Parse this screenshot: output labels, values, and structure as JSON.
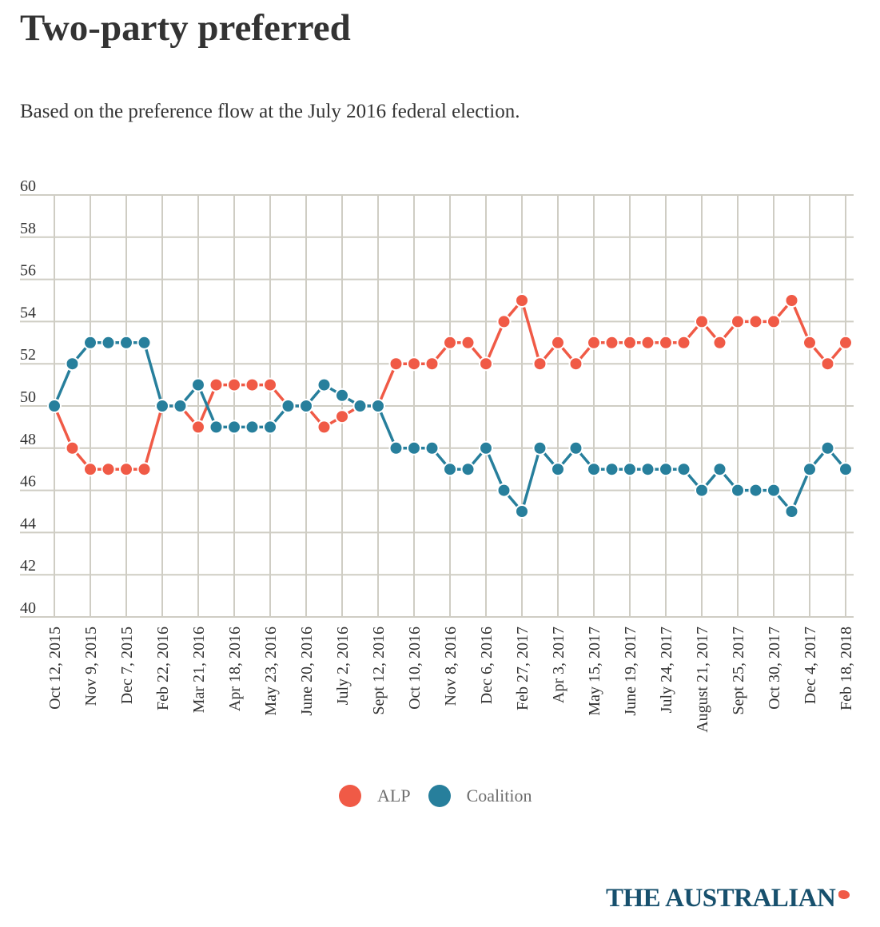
{
  "header": {
    "title": "Two-party preferred",
    "subtitle": "Based on the preference flow at the July 2016 federal election."
  },
  "legend": [
    {
      "label": "ALP",
      "color": "#f05a46"
    },
    {
      "label": "Coalition",
      "color": "#277f9c"
    }
  ],
  "logo": {
    "text": "THE AUSTRALIAN",
    "mark_color": "#f05a46"
  },
  "chart_data": {
    "type": "line",
    "title": "Two-party preferred",
    "subtitle": "Based on the preference flow at the July 2016 federal election.",
    "xlabel": "",
    "ylabel": "",
    "ylim": [
      40,
      60
    ],
    "yticks": [
      40,
      42,
      44,
      46,
      48,
      50,
      52,
      54,
      56,
      58,
      60
    ],
    "grid": true,
    "legend_position": "bottom-center",
    "x_tick_labels": [
      "Oct 12, 2015",
      "Nov 9, 2015",
      "Dec 7, 2015",
      "Feb 22, 2016",
      "Mar 21, 2016",
      "Apr 18, 2016",
      "May 23, 2016",
      "June 20, 2016",
      "July 2, 2016",
      "Sept 12, 2016",
      "Oct 10, 2016",
      "Nov 8, 2016",
      "Dec 6, 2016",
      "Feb 27, 2017",
      "Apr 3, 2017",
      "May 15, 2017",
      "June 19, 2017",
      "July 24, 2017",
      "August 21, 2017",
      "Sept 25, 2017",
      "Oct 30, 2017",
      "Dec 4, 2017",
      "Feb 18, 2018"
    ],
    "x_tick_every_n_points": 2,
    "n_points": 45,
    "series": [
      {
        "name": "ALP",
        "color": "#f05a46",
        "values": [
          50,
          48,
          47,
          47,
          47,
          47,
          50,
          50,
          49,
          51,
          51,
          51,
          51,
          50,
          50,
          49,
          49.5,
          50,
          50,
          52,
          52,
          52,
          53,
          53,
          52,
          54,
          55,
          52,
          53,
          52,
          53,
          53,
          53,
          53,
          53,
          53,
          54,
          53,
          54,
          54,
          54,
          55,
          53,
          52,
          53
        ]
      },
      {
        "name": "Coalition",
        "color": "#277f9c",
        "values": [
          50,
          52,
          53,
          53,
          53,
          53,
          50,
          50,
          51,
          49,
          49,
          49,
          49,
          50,
          50,
          51,
          50.5,
          50,
          50,
          48,
          48,
          48,
          47,
          47,
          48,
          46,
          45,
          48,
          47,
          48,
          47,
          47,
          47,
          47,
          47,
          47,
          46,
          47,
          46,
          46,
          46,
          45,
          47,
          48,
          47
        ]
      }
    ]
  }
}
